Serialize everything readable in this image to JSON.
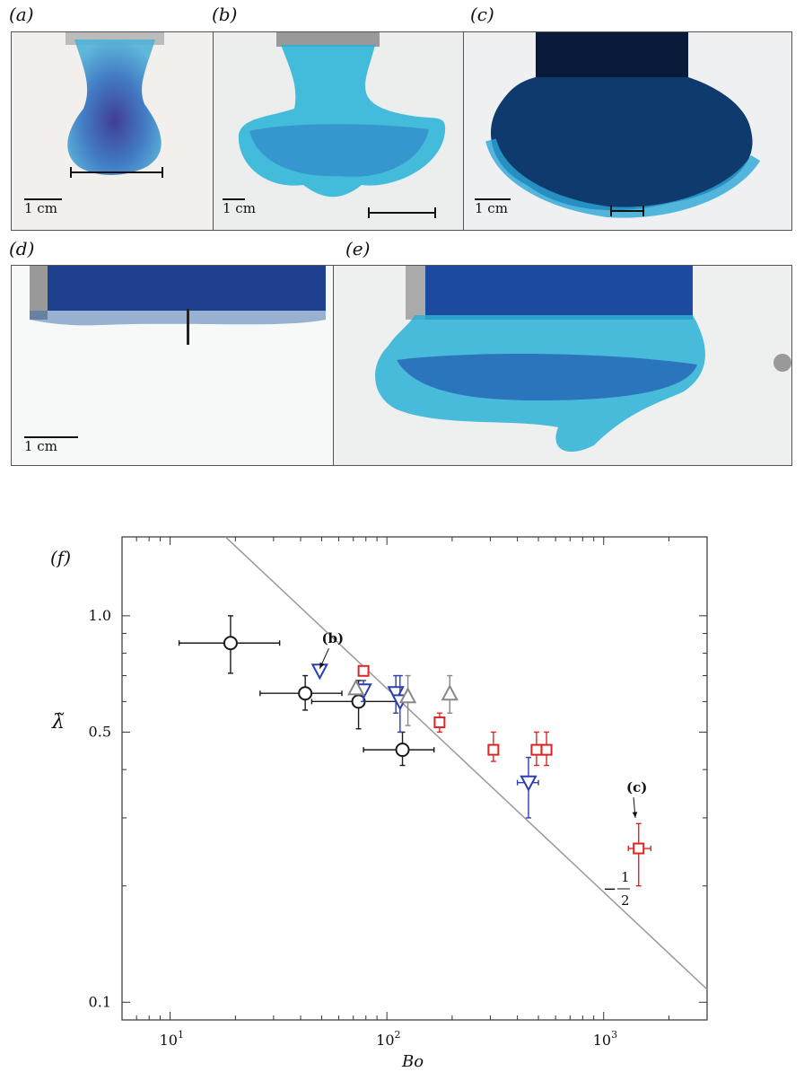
{
  "panels": [
    {
      "label": "(a)",
      "scale": "1 cm"
    },
    {
      "label": "(b)",
      "scale": "1 cm"
    },
    {
      "label": "(c)",
      "scale": "1 cm"
    },
    {
      "label": "(d)",
      "scale": "1 cm"
    },
    {
      "label": "(e)"
    }
  ],
  "colors": {
    "black": "#1a1a1a",
    "blue": "#2a3fb0",
    "gray": "#888888",
    "red": "#e02424",
    "fit": "#999999",
    "dye": "#1aa0c8",
    "dark_dye": "#0a1a3a"
  },
  "chart_data": {
    "type": "scatter",
    "panel_label": "(f)",
    "xlabel": "Bo",
    "ylabel": "λ̃",
    "xscale": "log",
    "yscale": "log",
    "xlim": [
      6,
      3000
    ],
    "ylim": [
      0.09,
      1.6
    ],
    "x_ticks": [
      {
        "v": 10,
        "base": "10",
        "exp": "1"
      },
      {
        "v": 100,
        "base": "10",
        "exp": "2"
      },
      {
        "v": 1000,
        "base": "10",
        "exp": "3"
      }
    ],
    "y_ticks": [
      {
        "v": 0.1,
        "label": "0.1"
      },
      {
        "v": 0.5,
        "label": "0.5"
      },
      {
        "v": 1.0,
        "label": "1.0"
      }
    ],
    "fit_line": {
      "slope": -0.5,
      "num": "1",
      "den": "2",
      "sign": "−",
      "points": [
        [
          18,
          1.6
        ],
        [
          3000,
          0.108
        ]
      ]
    },
    "annotations": [
      {
        "text": "(b)",
        "x": 55,
        "y": 0.85,
        "target": [
          49,
          0.73
        ]
      },
      {
        "text": "(c)",
        "x": 1400,
        "y": 0.35,
        "target": [
          1400,
          0.3
        ]
      }
    ],
    "series": [
      {
        "marker": "circle",
        "color": "#1a1a1a",
        "points": [
          {
            "x": 19,
            "y": 0.85,
            "xerr": [
              11,
              32
            ],
            "yerr": [
              0.71,
              1.0
            ]
          },
          {
            "x": 42,
            "y": 0.63,
            "xerr": [
              26,
              62
            ],
            "yerr": [
              0.57,
              0.7
            ]
          },
          {
            "x": 74,
            "y": 0.6,
            "xerr": [
              45,
              110
            ],
            "yerr": [
              0.51,
              0.68
            ]
          },
          {
            "x": 118,
            "y": 0.45,
            "xerr": [
              78,
              165
            ],
            "yerr": [
              0.41,
              0.5
            ]
          }
        ]
      },
      {
        "marker": "triangle-down",
        "color": "#2a3fb0",
        "points": [
          {
            "x": 49,
            "y": 0.72
          },
          {
            "x": 78,
            "y": 0.64,
            "yerr": [
              0.6,
              0.68
            ]
          },
          {
            "x": 110,
            "y": 0.63,
            "yerr": [
              0.56,
              0.7
            ]
          },
          {
            "x": 115,
            "y": 0.6,
            "yerr": [
              0.5,
              0.7
            ]
          },
          {
            "x": 450,
            "y": 0.37,
            "xerr": [
              400,
              500
            ],
            "yerr": [
              0.3,
              0.43
            ]
          }
        ]
      },
      {
        "marker": "triangle-up",
        "color": "#888888",
        "points": [
          {
            "x": 72,
            "y": 0.65
          },
          {
            "x": 125,
            "y": 0.62,
            "yerr": [
              0.52,
              0.7
            ]
          },
          {
            "x": 195,
            "y": 0.63,
            "yerr": [
              0.56,
              0.7
            ]
          }
        ]
      },
      {
        "marker": "square",
        "color": "#e02424",
        "points": [
          {
            "x": 78,
            "y": 0.72
          },
          {
            "x": 175,
            "y": 0.53,
            "yerr": [
              0.5,
              0.56
            ]
          },
          {
            "x": 310,
            "y": 0.45,
            "yerr": [
              0.42,
              0.5
            ]
          },
          {
            "x": 490,
            "y": 0.45,
            "yerr": [
              0.41,
              0.5
            ]
          },
          {
            "x": 545,
            "y": 0.45,
            "yerr": [
              0.41,
              0.5
            ]
          },
          {
            "x": 1450,
            "y": 0.25,
            "xerr": [
              1300,
              1650
            ],
            "yerr": [
              0.2,
              0.29
            ]
          }
        ]
      }
    ]
  }
}
